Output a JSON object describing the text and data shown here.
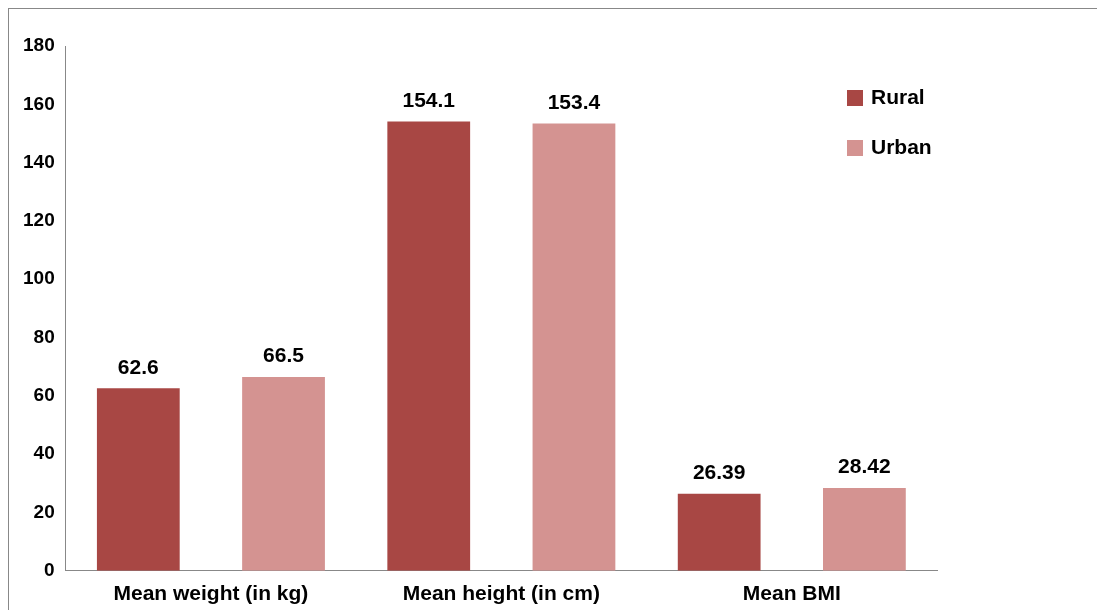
{
  "chart_data": {
    "type": "bar",
    "categories": [
      "Mean weight (in kg)",
      "Mean height (in cm)",
      "Mean BMI"
    ],
    "series": [
      {
        "name": "Rural",
        "color": "#a84744",
        "values": [
          62.6,
          154.1,
          26.39
        ]
      },
      {
        "name": "Urban",
        "color": "#d49391",
        "values": [
          66.5,
          153.4,
          28.42
        ]
      }
    ],
    "ylim": [
      0,
      180
    ],
    "yticks": [
      0,
      20,
      40,
      60,
      80,
      100,
      120,
      140,
      160,
      180
    ],
    "grid": false,
    "legend": "top right",
    "data_labels": true
  }
}
